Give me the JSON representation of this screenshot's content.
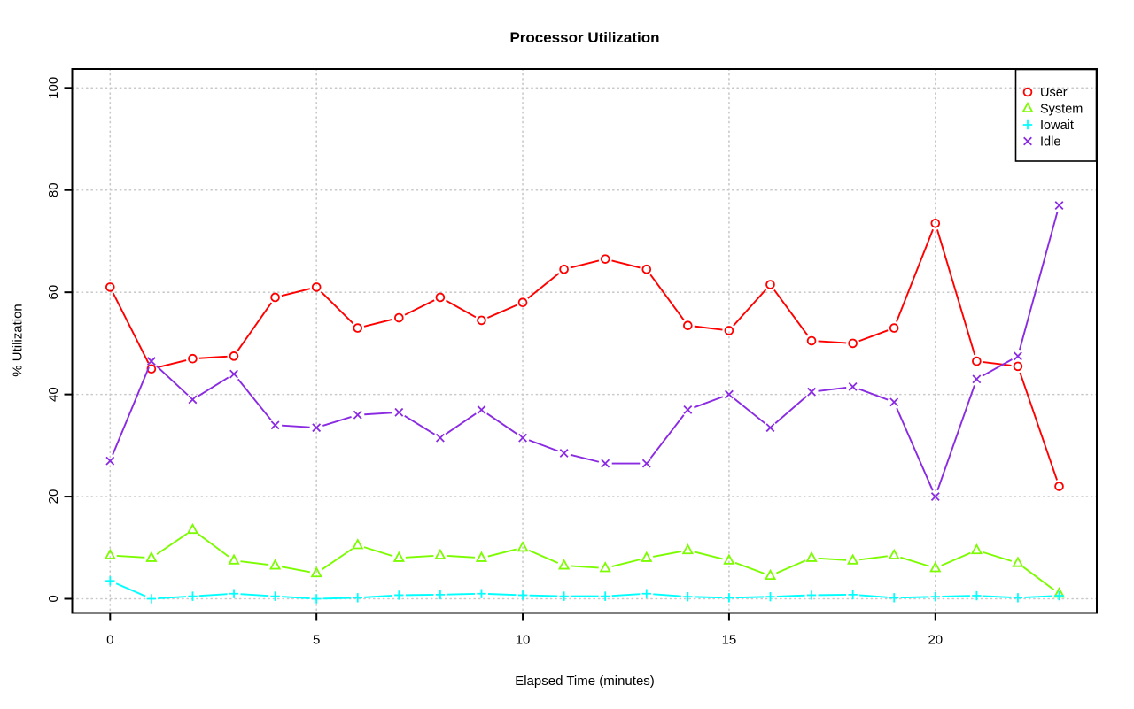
{
  "chart_data": {
    "type": "line",
    "title": "Processor Utilization",
    "xlabel": "Elapsed Time (minutes)",
    "ylabel": "% Utilization",
    "x": [
      0,
      1,
      2,
      3,
      4,
      5,
      6,
      7,
      8,
      9,
      10,
      11,
      12,
      13,
      14,
      15,
      16,
      17,
      18,
      19,
      20,
      21,
      22,
      23
    ],
    "xticks": [
      0,
      5,
      10,
      15,
      20
    ],
    "yticks": [
      0,
      20,
      40,
      60,
      80,
      100
    ],
    "xlim": [
      -1,
      24.5
    ],
    "ylim": [
      0,
      100
    ],
    "grid": true,
    "grid_style": "dotted",
    "legend_position": "top-right",
    "series": [
      {
        "name": "User",
        "color": "#FF0000",
        "marker": "circle",
        "values": [
          61,
          45,
          47,
          47.5,
          59,
          61,
          53,
          55,
          59,
          54.5,
          58,
          64.5,
          66.5,
          64.5,
          53.5,
          52.5,
          61.5,
          50.5,
          50,
          53,
          73.5,
          46.5,
          45.5,
          22
        ]
      },
      {
        "name": "System",
        "color": "#7CFC00",
        "marker": "triangle",
        "values": [
          8.5,
          8,
          13.5,
          7.5,
          6.5,
          5,
          10.5,
          8,
          8.5,
          8,
          10,
          6.5,
          6,
          8,
          9.5,
          7.5,
          4.5,
          8,
          7.5,
          8.5,
          6,
          9.5,
          7,
          1
        ]
      },
      {
        "name": "Iowait",
        "color": "#00FFFF",
        "marker": "plus",
        "values": [
          3.5,
          0,
          0.5,
          1,
          0.5,
          0,
          0.2,
          0.7,
          0.8,
          1,
          0.7,
          0.5,
          0.5,
          1,
          0.4,
          0.2,
          0.4,
          0.7,
          0.8,
          0.2,
          0.4,
          0.6,
          0.2,
          0.6
        ]
      },
      {
        "name": "Idle",
        "color": "#8A2BE2",
        "marker": "x",
        "values": [
          27,
          46.5,
          39,
          44,
          34,
          33.5,
          36,
          36.5,
          31.5,
          37,
          31.5,
          28.5,
          26.5,
          26.5,
          37,
          40,
          33.5,
          40.5,
          41.5,
          38.5,
          20,
          43,
          47.5,
          77
        ]
      }
    ]
  },
  "colors": {
    "background": "#ffffff",
    "axis": "#000000",
    "grid": "#c9c9c9",
    "text": "#000000"
  }
}
